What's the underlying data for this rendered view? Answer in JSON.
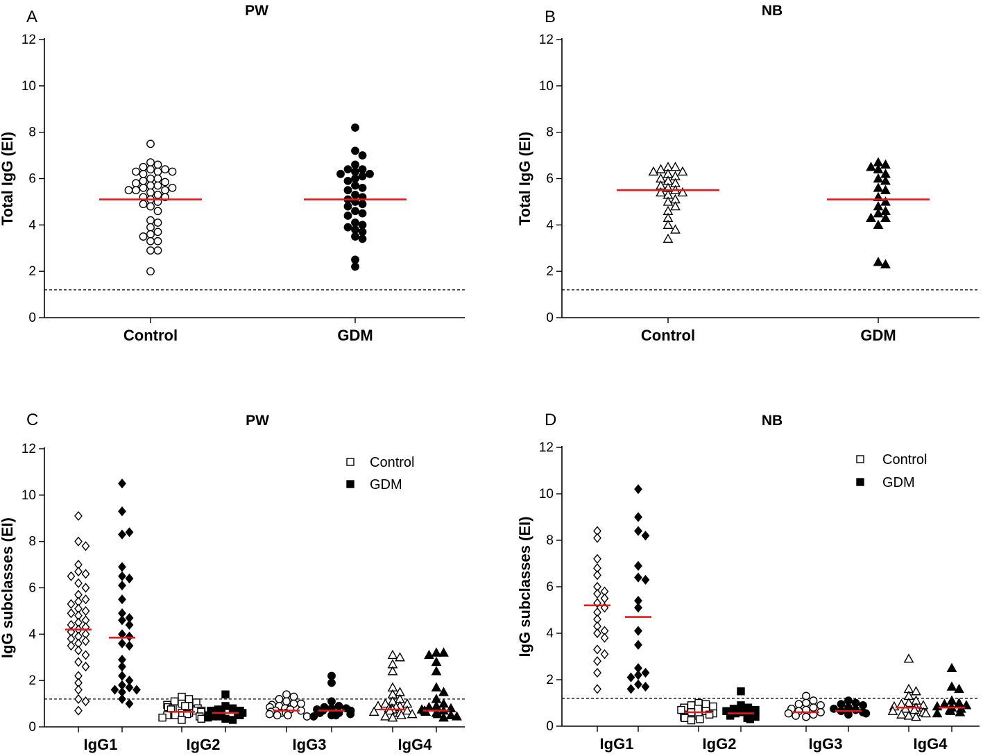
{
  "colors": {
    "median": "#e31a1c",
    "axis": "#000000",
    "threshold": "#000000"
  },
  "chart_data": [
    {
      "id": "A",
      "letter": "A",
      "type": "scatter",
      "title": "PW",
      "ylabel": "Total IgG (EI)",
      "ylim": [
        0,
        12
      ],
      "yticks": [
        0,
        2,
        4,
        6,
        8,
        10,
        12
      ],
      "threshold": 1.2,
      "categories": [
        "Control",
        "GDM"
      ],
      "groups": [
        {
          "name": "Control",
          "marker": "circle",
          "filled": false,
          "median": 5.1,
          "values": [
            7.5,
            6.7,
            6.6,
            6.5,
            6.4,
            6.4,
            6.3,
            6.3,
            6.3,
            6.2,
            6.0,
            6.0,
            5.9,
            5.85,
            5.8,
            5.7,
            5.7,
            5.6,
            5.6,
            5.5,
            5.5,
            5.5,
            5.4,
            5.3,
            5.2,
            5.2,
            5.1,
            5.0,
            4.9,
            4.8,
            4.6,
            4.2,
            4.1,
            3.9,
            3.7,
            3.6,
            3.5,
            3.3,
            3.3,
            2.9,
            2.9,
            2.0
          ]
        },
        {
          "name": "GDM",
          "marker": "circle",
          "filled": true,
          "median": 5.1,
          "values": [
            8.2,
            7.2,
            7.0,
            6.6,
            6.4,
            6.4,
            6.3,
            6.2,
            6.2,
            6.1,
            6.0,
            5.9,
            5.7,
            5.6,
            5.5,
            5.3,
            5.2,
            5.1,
            5.0,
            4.9,
            4.8,
            4.6,
            4.5,
            4.4,
            4.1,
            4.0,
            3.9,
            3.8,
            3.7,
            3.5,
            3.4,
            2.5,
            2.2
          ]
        }
      ]
    },
    {
      "id": "B",
      "letter": "B",
      "type": "scatter",
      "title": "NB",
      "ylabel": "Total IgG (EI)",
      "ylim": [
        0,
        12
      ],
      "yticks": [
        0,
        2,
        4,
        6,
        8,
        10,
        12
      ],
      "threshold": 1.2,
      "categories": [
        "Control",
        "GDM"
      ],
      "groups": [
        {
          "name": "Control",
          "marker": "triangle",
          "filled": false,
          "median": 5.5,
          "values": [
            6.5,
            6.5,
            6.4,
            6.3,
            6.3,
            6.2,
            6.1,
            6.0,
            5.9,
            5.8,
            5.7,
            5.6,
            5.5,
            5.4,
            5.4,
            5.3,
            5.1,
            5.0,
            4.8,
            4.6,
            4.3,
            4.0,
            3.8,
            3.4
          ]
        },
        {
          "name": "GDM",
          "marker": "triangle",
          "filled": true,
          "median": 5.1,
          "values": [
            6.7,
            6.6,
            6.5,
            6.4,
            6.2,
            6.0,
            5.9,
            5.6,
            5.5,
            5.2,
            5.0,
            4.8,
            4.6,
            4.5,
            4.3,
            4.3,
            4.0,
            2.4,
            2.3
          ]
        }
      ]
    },
    {
      "id": "C",
      "letter": "C",
      "type": "scatter",
      "title": "PW",
      "ylabel": "IgG subclasses (EI)",
      "ylim": [
        0,
        12
      ],
      "yticks": [
        0,
        2,
        4,
        6,
        8,
        10,
        12
      ],
      "threshold": 1.2,
      "categories": [
        "IgG1",
        "IgG2",
        "IgG3",
        "IgG4"
      ],
      "legend": [
        {
          "label": "Control",
          "filled": false
        },
        {
          "label": "GDM",
          "filled": true
        }
      ],
      "groups": [
        {
          "category": "IgG1",
          "name": "Control",
          "marker": "diamond",
          "filled": false,
          "median": 4.2,
          "values": [
            9.1,
            8.0,
            7.8,
            7.0,
            6.7,
            6.6,
            6.5,
            6.2,
            6.0,
            5.7,
            5.5,
            5.4,
            5.3,
            5.1,
            5.0,
            4.9,
            4.8,
            4.6,
            4.5,
            4.4,
            4.3,
            4.2,
            4.1,
            4.0,
            3.9,
            3.8,
            3.7,
            3.6,
            3.5,
            3.3,
            3.1,
            2.8,
            2.6,
            2.2,
            1.9,
            1.6,
            1.2,
            1.1,
            0.7
          ]
        },
        {
          "category": "IgG1",
          "name": "GDM",
          "marker": "diamond",
          "filled": true,
          "median": 3.85,
          "values": [
            10.5,
            9.3,
            8.3,
            8.4,
            6.9,
            6.5,
            6.4,
            6.1,
            5.5,
            4.9,
            4.7,
            4.6,
            4.4,
            4.0,
            3.9,
            3.6,
            3.5,
            2.9,
            2.6,
            2.2,
            2.0,
            1.8,
            1.7,
            1.6,
            1.6,
            1.5,
            1.2,
            1.0
          ]
        },
        {
          "category": "IgG2",
          "name": "Control",
          "marker": "square",
          "filled": false,
          "median": 0.65,
          "values": [
            1.3,
            1.2,
            1.1,
            1.05,
            1.0,
            0.95,
            0.9,
            0.9,
            0.85,
            0.8,
            0.8,
            0.75,
            0.7,
            0.7,
            0.65,
            0.6,
            0.6,
            0.55,
            0.5,
            0.5,
            0.45,
            0.4,
            0.35,
            0.3
          ]
        },
        {
          "category": "IgG2",
          "name": "GDM",
          "marker": "square",
          "filled": true,
          "median": 0.6,
          "values": [
            1.4,
            0.9,
            0.8,
            0.75,
            0.7,
            0.7,
            0.65,
            0.6,
            0.6,
            0.55,
            0.55,
            0.5,
            0.5,
            0.45,
            0.45,
            0.4,
            0.35,
            0.3
          ]
        },
        {
          "category": "IgG3",
          "name": "Control",
          "marker": "circle",
          "filled": false,
          "median": 0.7,
          "values": [
            1.4,
            1.3,
            1.2,
            1.1,
            1.0,
            1.0,
            0.95,
            0.9,
            0.85,
            0.8,
            0.8,
            0.75,
            0.7,
            0.7,
            0.65,
            0.6,
            0.6,
            0.55,
            0.5,
            0.5,
            0.45
          ]
        },
        {
          "category": "IgG3",
          "name": "GDM",
          "marker": "circle",
          "filled": true,
          "median": 0.7,
          "values": [
            2.2,
            1.9,
            1.1,
            0.9,
            0.85,
            0.8,
            0.8,
            0.75,
            0.7,
            0.7,
            0.65,
            0.6,
            0.6,
            0.55,
            0.5,
            0.5,
            0.45
          ]
        },
        {
          "category": "IgG4",
          "name": "Control",
          "marker": "triangle",
          "filled": false,
          "median": 0.75,
          "values": [
            3.1,
            3.0,
            2.7,
            2.4,
            1.7,
            1.5,
            1.4,
            1.2,
            1.1,
            1.0,
            1.0,
            0.9,
            0.9,
            0.85,
            0.8,
            0.8,
            0.75,
            0.7,
            0.7,
            0.65,
            0.6,
            0.55,
            0.5,
            0.45,
            0.4
          ]
        },
        {
          "category": "IgG4",
          "name": "GDM",
          "marker": "triangle",
          "filled": true,
          "median": 0.7,
          "values": [
            3.2,
            3.2,
            3.1,
            2.8,
            2.4,
            1.7,
            1.5,
            1.2,
            1.0,
            0.9,
            0.85,
            0.8,
            0.75,
            0.7,
            0.7,
            0.65,
            0.6,
            0.55,
            0.5,
            0.45,
            0.4
          ]
        }
      ]
    },
    {
      "id": "D",
      "letter": "D",
      "type": "scatter",
      "title": "NB",
      "ylabel": "IgG subclasses (EI)",
      "ylim": [
        0,
        12
      ],
      "yticks": [
        0,
        2,
        4,
        6,
        8,
        10,
        12
      ],
      "threshold": 1.2,
      "categories": [
        "IgG1",
        "IgG2",
        "IgG3",
        "IgG4"
      ],
      "legend": [
        {
          "label": "Control",
          "filled": false
        },
        {
          "label": "GDM",
          "filled": true
        }
      ],
      "groups": [
        {
          "category": "IgG1",
          "name": "Control",
          "marker": "diamond",
          "filled": false,
          "median": 5.2,
          "values": [
            8.4,
            8.1,
            7.2,
            6.8,
            6.5,
            6.0,
            5.8,
            5.7,
            5.5,
            5.3,
            5.1,
            4.9,
            4.6,
            4.3,
            4.1,
            4.0,
            3.8,
            3.3,
            3.1,
            2.8,
            2.3,
            1.6
          ]
        },
        {
          "category": "IgG1",
          "name": "GDM",
          "marker": "diamond",
          "filled": true,
          "median": 4.7,
          "values": [
            10.2,
            9.0,
            8.4,
            8.2,
            6.9,
            6.4,
            6.3,
            5.4,
            5.1,
            4.1,
            3.5,
            2.5,
            2.3,
            2.2,
            2.1,
            1.8,
            1.7,
            1.6
          ]
        },
        {
          "category": "IgG2",
          "name": "Control",
          "marker": "square",
          "filled": false,
          "median": 0.6,
          "values": [
            1.0,
            0.95,
            0.9,
            0.85,
            0.8,
            0.75,
            0.7,
            0.65,
            0.6,
            0.55,
            0.5,
            0.45,
            0.4,
            0.35,
            0.3,
            0.25
          ]
        },
        {
          "category": "IgG2",
          "name": "GDM",
          "marker": "square",
          "filled": true,
          "median": 0.55,
          "values": [
            1.5,
            0.9,
            0.8,
            0.75,
            0.7,
            0.65,
            0.6,
            0.55,
            0.5,
            0.45,
            0.4,
            0.35,
            0.3
          ]
        },
        {
          "category": "IgG3",
          "name": "Control",
          "marker": "circle",
          "filled": false,
          "median": 0.6,
          "values": [
            1.3,
            1.1,
            1.0,
            0.95,
            0.9,
            0.8,
            0.75,
            0.7,
            0.65,
            0.6,
            0.55,
            0.5,
            0.45,
            0.4
          ]
        },
        {
          "category": "IgG3",
          "name": "GDM",
          "marker": "circle",
          "filled": true,
          "median": 0.65,
          "values": [
            1.1,
            1.0,
            0.95,
            0.9,
            0.8,
            0.75,
            0.7,
            0.65,
            0.6,
            0.55,
            0.5
          ]
        },
        {
          "category": "IgG4",
          "name": "Control",
          "marker": "triangle",
          "filled": false,
          "median": 0.8,
          "values": [
            2.9,
            1.6,
            1.5,
            1.3,
            1.1,
            1.0,
            0.95,
            0.9,
            0.85,
            0.8,
            0.75,
            0.7,
            0.65,
            0.6,
            0.55,
            0.5,
            0.45,
            0.4
          ]
        },
        {
          "category": "IgG4",
          "name": "GDM",
          "marker": "triangle",
          "filled": true,
          "median": 0.8,
          "values": [
            2.5,
            1.7,
            1.6,
            1.1,
            1.0,
            0.95,
            0.9,
            0.85,
            0.8,
            0.75,
            0.7,
            0.65,
            0.6,
            0.55
          ]
        }
      ]
    }
  ]
}
